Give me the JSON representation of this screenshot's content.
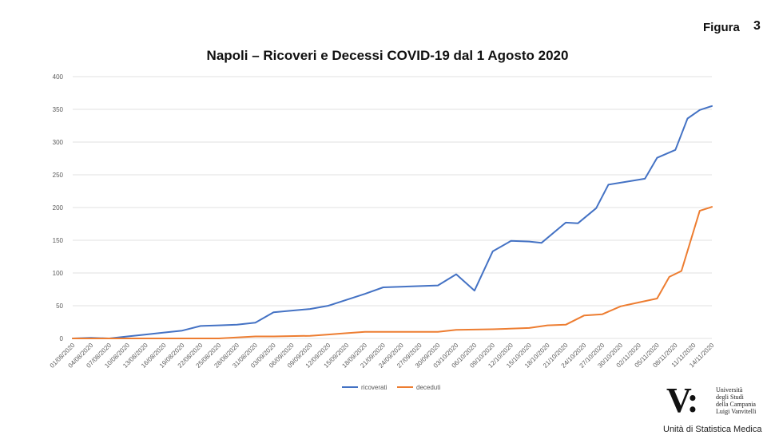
{
  "figure": {
    "label": "Figura",
    "number": "3"
  },
  "logo": {
    "mark": "V:",
    "institution": "Università\ndegli Studi\ndella Campania\nLuigi Vanvitelli",
    "caption": "Unità di Statistica Medica"
  },
  "colors": {
    "ricoverati": "#4472C4",
    "deceduti": "#ED7D31",
    "grid": "#D9D9D9"
  },
  "chart_data": {
    "type": "line",
    "title": "Napoli – Ricoveri e Decessi COVID-19 dal 1 Agosto 2020",
    "xlabel": "",
    "ylabel": "",
    "ylim": [
      0,
      400
    ],
    "yticks": [
      0,
      50,
      100,
      150,
      200,
      250,
      300,
      350,
      400
    ],
    "grid": true,
    "legend_position": "bottom",
    "x_tick_labels": [
      "01/08/2020",
      "04/08/2020",
      "07/08/2020",
      "10/08/2020",
      "13/08/2020",
      "16/08/2020",
      "19/08/2020",
      "22/08/2020",
      "25/08/2020",
      "28/08/2020",
      "31/08/2020",
      "03/09/2020",
      "06/09/2020",
      "09/09/2020",
      "12/09/2020",
      "15/09/2020",
      "18/09/2020",
      "21/09/2020",
      "24/09/2020",
      "27/09/2020",
      "30/09/2020",
      "03/10/2020",
      "06/10/2020",
      "09/10/2020",
      "12/10/2020",
      "15/10/2020",
      "18/10/2020",
      "21/10/2020",
      "24/10/2020",
      "27/10/2020",
      "30/10/2020",
      "02/11/2020",
      "05/11/2020",
      "08/11/2020",
      "11/11/2020",
      "14/11/2020"
    ],
    "series": [
      {
        "name": "ricoverati",
        "points": [
          [
            "01/08/2020",
            0
          ],
          [
            "04/08/2020",
            1
          ],
          [
            "07/08/2020",
            0
          ],
          [
            "10/08/2020",
            3
          ],
          [
            "13/08/2020",
            6
          ],
          [
            "16/08/2020",
            9
          ],
          [
            "19/08/2020",
            12
          ],
          [
            "22/08/2020",
            19
          ],
          [
            "25/08/2020",
            20
          ],
          [
            "28/08/2020",
            21
          ],
          [
            "31/08/2020",
            24
          ],
          [
            "03/09/2020",
            40
          ],
          [
            "09/09/2020",
            45
          ],
          [
            "12/09/2020",
            50
          ],
          [
            "18/09/2020",
            68
          ],
          [
            "21/09/2020",
            78
          ],
          [
            "30/09/2020",
            81
          ],
          [
            "03/10/2020",
            98
          ],
          [
            "06/10/2020",
            73
          ],
          [
            "09/10/2020",
            133
          ],
          [
            "12/10/2020",
            149
          ],
          [
            "15/10/2020",
            148
          ],
          [
            "17/10/2020",
            146
          ],
          [
            "21/10/2020",
            177
          ],
          [
            "23/10/2020",
            176
          ],
          [
            "26/10/2020",
            199
          ],
          [
            "28/10/2020",
            235
          ],
          [
            "01/11/2020",
            241
          ],
          [
            "03/11/2020",
            244
          ],
          [
            "05/11/2020",
            276
          ],
          [
            "08/11/2020",
            288
          ],
          [
            "10/11/2020",
            336
          ],
          [
            "12/11/2020",
            349
          ],
          [
            "14/11/2020",
            355
          ]
        ]
      },
      {
        "name": "deceduti",
        "points": [
          [
            "01/08/2020",
            0
          ],
          [
            "04/08/2020",
            0
          ],
          [
            "10/08/2020",
            0
          ],
          [
            "25/08/2020",
            0
          ],
          [
            "31/08/2020",
            3
          ],
          [
            "03/09/2020",
            3
          ],
          [
            "09/09/2020",
            4
          ],
          [
            "12/09/2020",
            6
          ],
          [
            "15/09/2020",
            8
          ],
          [
            "18/09/2020",
            10
          ],
          [
            "30/09/2020",
            10
          ],
          [
            "03/10/2020",
            13
          ],
          [
            "09/10/2020",
            14
          ],
          [
            "15/10/2020",
            16
          ],
          [
            "18/10/2020",
            20
          ],
          [
            "21/10/2020",
            21
          ],
          [
            "24/10/2020",
            35
          ],
          [
            "27/10/2020",
            37
          ],
          [
            "30/10/2020",
            49
          ],
          [
            "02/11/2020",
            55
          ],
          [
            "05/11/2020",
            61
          ],
          [
            "07/11/2020",
            94
          ],
          [
            "09/11/2020",
            103
          ],
          [
            "12/11/2020",
            195
          ],
          [
            "14/11/2020",
            201
          ]
        ]
      }
    ]
  }
}
